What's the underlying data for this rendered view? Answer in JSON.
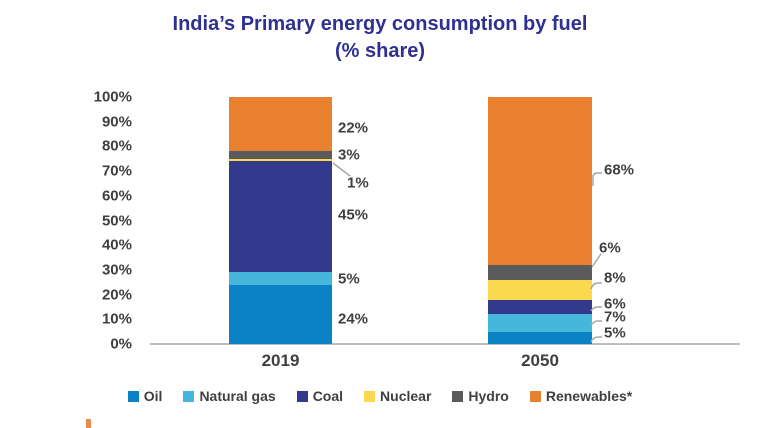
{
  "title": {
    "line1": "India’s Primary energy consumption by fuel",
    "line2": "(% share)"
  },
  "chart_data": {
    "type": "bar",
    "stacked": true,
    "title": "India’s Primary energy consumption by fuel (% share)",
    "categories": [
      "2019",
      "2050"
    ],
    "series": [
      {
        "name": "Oil",
        "color": "#0B82C6",
        "values": [
          24,
          5
        ]
      },
      {
        "name": "Natural gas",
        "color": "#45B7DB",
        "values": [
          5,
          7
        ]
      },
      {
        "name": "Coal",
        "color": "#33398C",
        "values": [
          45,
          6
        ]
      },
      {
        "name": "Nuclear",
        "color": "#FBD94F",
        "values": [
          1,
          8
        ]
      },
      {
        "name": "Hydro",
        "color": "#5A5A5A",
        "values": [
          3,
          6
        ]
      },
      {
        "name": "Renewables*",
        "color": "#E8802F",
        "values": [
          22,
          68
        ]
      }
    ],
    "data_labels": [
      [
        "24%",
        "5%",
        "45%",
        "1%",
        "3%",
        "22%"
      ],
      [
        "5%",
        "7%",
        "6%",
        "8%",
        "6%",
        "68%"
      ]
    ],
    "ylim": [
      0,
      100
    ],
    "ytick_labels": [
      "0%",
      "10%",
      "20%",
      "30%",
      "40%",
      "50%",
      "60%",
      "70%",
      "80%",
      "90%",
      "100%"
    ],
    "grid": false,
    "legend_position": "bottom"
  },
  "styles": {
    "title_color": "#2E3192",
    "text_color": "#3F3F3F",
    "axis_line_color": "#BFBFBF",
    "leader_color": "#A6A6A6",
    "background": "#FFFFFF",
    "artifact_color": "#EA8C4B"
  }
}
